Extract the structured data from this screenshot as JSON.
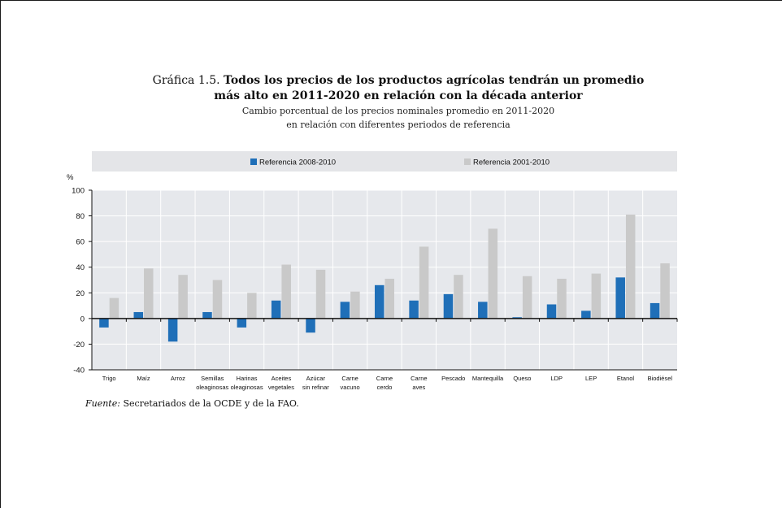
{
  "title": {
    "label": "Gráfica 1.5.",
    "line1": "Todos los precios de los productos agrícolas tendrán un promedio",
    "line2": "más alto en 2011-2020 en relación con la década anterior"
  },
  "subtitle": {
    "line1": "Cambio porcentual de los precios nominales promedio en 2011-2020",
    "line2": "en relación con diferentes periodos de referencia"
  },
  "source": {
    "label": "Fuente:",
    "text": "Secretariados de la OCDE y de la FAO."
  },
  "colors": {
    "series1": "#1f6fb8",
    "series2": "#c9c9c9",
    "plot_bg": "#e6e8ec",
    "legend_bg": "#e4e5e8",
    "zero_line": "#111111"
  },
  "chart_data": {
    "type": "bar",
    "ylabel": "%",
    "ylim": [
      -40,
      100
    ],
    "yticks": [
      -40,
      -20,
      0,
      20,
      40,
      60,
      80,
      100
    ],
    "legend_position": "top",
    "categories": [
      [
        "Trigo"
      ],
      [
        "Maíz"
      ],
      [
        "Arroz"
      ],
      [
        "Semillas",
        "oleaginosas"
      ],
      [
        "Harinas",
        "oleaginosas"
      ],
      [
        "Aceites",
        "vegetales"
      ],
      [
        "Azúcar",
        "sin refinar"
      ],
      [
        "Carne",
        "vacuno"
      ],
      [
        "Carne",
        "cerdo"
      ],
      [
        "Carne",
        "aves"
      ],
      [
        "Pescado"
      ],
      [
        "Mantequilla"
      ],
      [
        "Queso"
      ],
      [
        "LDP"
      ],
      [
        "LEP"
      ],
      [
        "Etanol"
      ],
      [
        "Biodiésel"
      ]
    ],
    "series": [
      {
        "name": "Referencia 2008-2010",
        "values": [
          -7,
          5,
          -18,
          5,
          -7,
          14,
          -11,
          13,
          26,
          14,
          19,
          13,
          1,
          11,
          6,
          32,
          12
        ]
      },
      {
        "name": "Referencia 2001-2010",
        "values": [
          16,
          39,
          34,
          30,
          20,
          42,
          38,
          21,
          31,
          56,
          34,
          70,
          33,
          31,
          35,
          81,
          43
        ]
      }
    ]
  }
}
